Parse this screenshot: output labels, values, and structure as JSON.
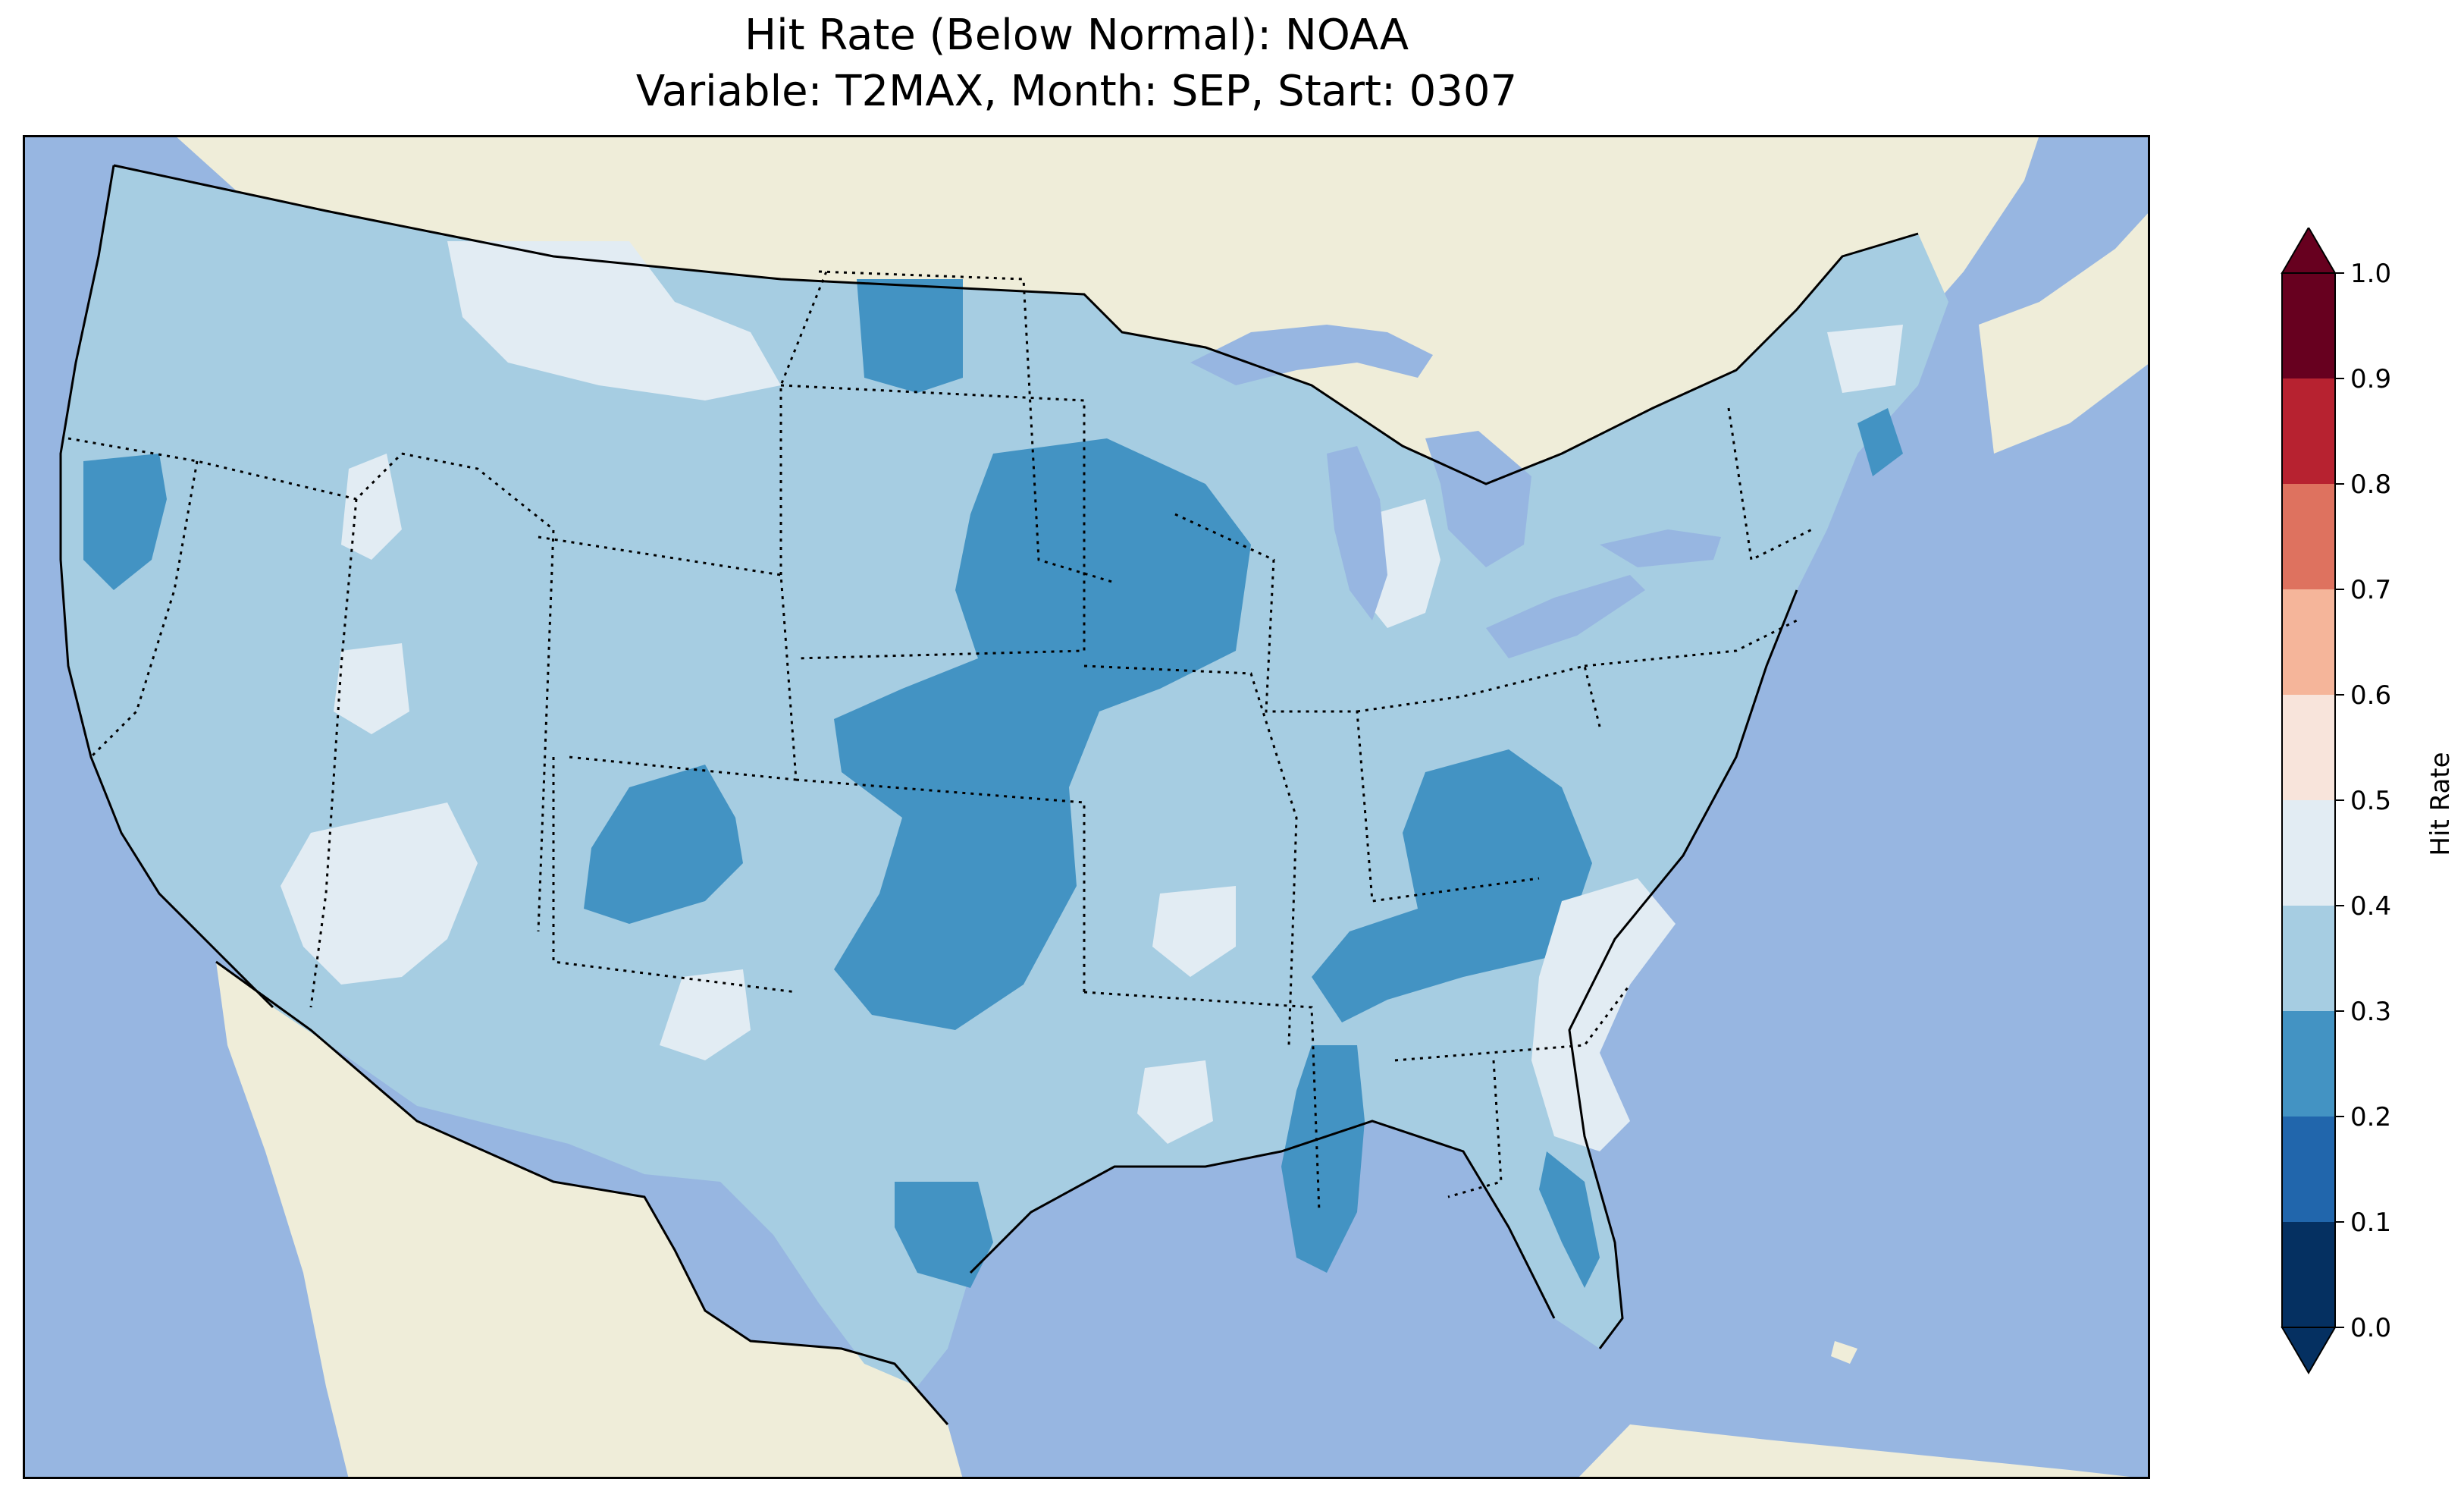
{
  "title": {
    "line1": "Hit Rate (Below Normal): NOAA",
    "line2": "Variable: T2MAX, Month: SEP, Start: 0307"
  },
  "colors": {
    "ocean": "#97b6e1",
    "land": "#efedd9",
    "lakes": "#97b6e1",
    "class_0_1": "#053061",
    "class_1_2": "#2166ac",
    "class_2_3": "#4393c3",
    "class_3_4": "#a6cde2",
    "class_4_5": "#e2ecf3",
    "class_5_6": "#f8e4db",
    "class_6_7": "#f5b59a",
    "class_7_8": "#de725f",
    "class_8_9": "#b72230",
    "class_9_10": "#67001f"
  },
  "legend": {
    "label": "Hit Rate",
    "ticks": [
      "0.0",
      "0.1",
      "0.2",
      "0.3",
      "0.4",
      "0.5",
      "0.6",
      "0.7",
      "0.8",
      "0.9",
      "1.0"
    ]
  },
  "map_data": {
    "dominant_class": "0.3-0.4",
    "regions_0_2_0_3": [
      "Pacific Northwest coast",
      "North Dakota",
      "Nebraska",
      "Kansas",
      "Oklahoma",
      "Colorado",
      "Kentucky",
      "Tennessee",
      "Mississippi",
      "Louisiana",
      "South Texas",
      "Florida Gulf coast"
    ],
    "regions_0_4_0_5": [
      "Montana",
      "Idaho",
      "Nevada",
      "Arizona",
      "New Mexico",
      "Carolinas",
      "Georgia",
      "Michigan",
      "Maine"
    ]
  }
}
